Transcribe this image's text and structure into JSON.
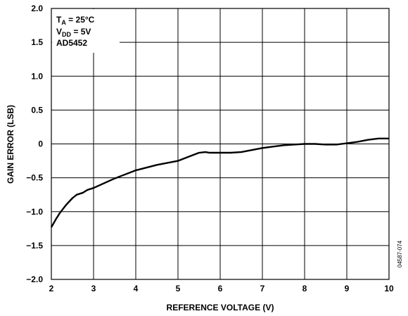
{
  "chart_data": {
    "type": "line",
    "xlabel": "REFERENCE VOLTAGE (V)",
    "ylabel": "GAIN ERROR (LSB)",
    "xlim": [
      2,
      10
    ],
    "ylim": [
      -2.0,
      2.0
    ],
    "x_ticks": [
      "2",
      "3",
      "4",
      "5",
      "6",
      "7",
      "8",
      "9",
      "10"
    ],
    "y_ticks": [
      "−2.0",
      "−1.5",
      "−1.0",
      "−0.5",
      "0",
      "0.5",
      "1.0",
      "1.5",
      "2.0"
    ],
    "grid": true,
    "annotation": {
      "line1_main": "T",
      "line1_sub": "A",
      "line1_rest": " = 25°C",
      "line2_main": "V",
      "line2_sub": "DD",
      "line2_rest": " = 5V",
      "line3": "AD5452"
    },
    "figure_code": "04587-074",
    "series": [
      {
        "x": [
          2.0,
          2.1,
          2.2,
          2.35,
          2.5,
          2.6,
          2.75,
          2.85,
          3.0,
          3.25,
          3.5,
          3.75,
          4.0,
          4.25,
          4.5,
          4.75,
          5.0,
          5.25,
          5.5,
          5.65,
          5.75,
          6.0,
          6.25,
          6.5,
          6.75,
          7.0,
          7.25,
          7.5,
          7.75,
          8.0,
          8.25,
          8.5,
          8.75,
          9.0,
          9.25,
          9.5,
          9.75,
          10.0
        ],
        "y": [
          -1.23,
          -1.12,
          -1.02,
          -0.9,
          -0.8,
          -0.75,
          -0.72,
          -0.68,
          -0.65,
          -0.58,
          -0.51,
          -0.45,
          -0.39,
          -0.35,
          -0.31,
          -0.28,
          -0.25,
          -0.19,
          -0.13,
          -0.12,
          -0.13,
          -0.13,
          -0.13,
          -0.12,
          -0.09,
          -0.06,
          -0.04,
          -0.02,
          -0.01,
          0.0,
          0.0,
          -0.01,
          -0.01,
          0.01,
          0.03,
          0.06,
          0.08,
          0.08
        ]
      }
    ]
  }
}
